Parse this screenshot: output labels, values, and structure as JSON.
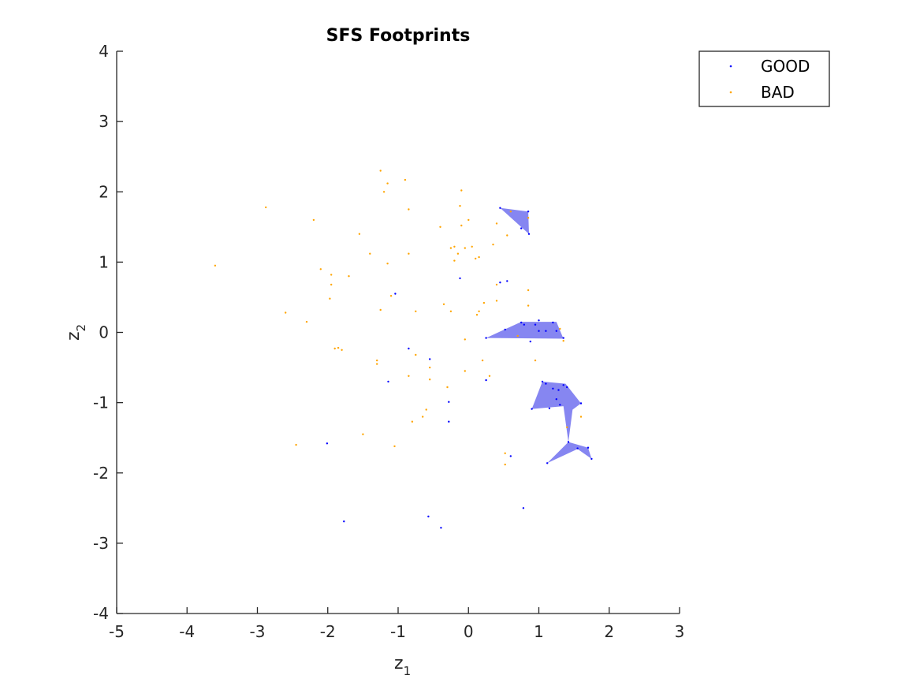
{
  "chart_data": {
    "type": "scatter",
    "title": "SFS Footprints",
    "xlabel": "z",
    "xlabel_sub": "1",
    "ylabel": "z",
    "ylabel_sub": "2",
    "xlim": [
      -5,
      3
    ],
    "ylim": [
      -4,
      4
    ],
    "xticks": [
      "-5",
      "-4",
      "-3",
      "-2",
      "-1",
      "0",
      "1",
      "2",
      "3"
    ],
    "yticks": [
      "4",
      "3",
      "2",
      "1",
      "0",
      "-1",
      "-2",
      "-3",
      "-4"
    ],
    "grid": false,
    "legend_position": "top-right",
    "colors": {
      "good": "#0000ff",
      "bad": "#ffa500",
      "footprint": "#8080f0",
      "axis": "#262626"
    },
    "series": [
      {
        "name": "GOOD",
        "values": [
          [
            0.45,
            1.77
          ],
          [
            0.55,
            0.73
          ],
          [
            0.45,
            0.71
          ],
          [
            0.85,
            1.72
          ],
          [
            0.86,
            1.4
          ],
          [
            0.75,
            1.48
          ],
          [
            0.25,
            -0.08
          ],
          [
            0.52,
            0.04
          ],
          [
            0.75,
            0.14
          ],
          [
            0.79,
            0.11
          ],
          [
            0.95,
            0.11
          ],
          [
            1.0,
            0.17
          ],
          [
            1.2,
            0.14
          ],
          [
            1.25,
            0.02
          ],
          [
            1.35,
            -0.08
          ],
          [
            1.0,
            0.02
          ],
          [
            1.1,
            0.02
          ],
          [
            0.88,
            -0.13
          ],
          [
            1.05,
            -0.7
          ],
          [
            1.1,
            -0.73
          ],
          [
            1.2,
            -0.8
          ],
          [
            1.28,
            -0.82
          ],
          [
            1.35,
            -0.75
          ],
          [
            1.4,
            -0.78
          ],
          [
            1.6,
            -1.01
          ],
          [
            1.25,
            -0.95
          ],
          [
            1.3,
            -1.03
          ],
          [
            1.15,
            -1.08
          ],
          [
            0.9,
            -1.09
          ],
          [
            1.42,
            -1.56
          ],
          [
            1.55,
            -1.65
          ],
          [
            1.7,
            -1.64
          ],
          [
            1.75,
            -1.8
          ],
          [
            1.12,
            -1.86
          ],
          [
            0.6,
            -1.76
          ],
          [
            0.78,
            -2.5
          ],
          [
            -1.04,
            0.55
          ],
          [
            -0.85,
            -0.23
          ],
          [
            -0.55,
            -0.38
          ],
          [
            -1.14,
            -0.7
          ],
          [
            -0.28,
            -0.99
          ],
          [
            -0.28,
            -1.27
          ],
          [
            0.25,
            -0.68
          ],
          [
            -0.12,
            0.77
          ],
          [
            -2.01,
            -1.58
          ],
          [
            -1.77,
            -2.69
          ],
          [
            -0.57,
            -2.62
          ],
          [
            -0.39,
            -2.78
          ]
        ]
      },
      {
        "name": "BAD",
        "values": [
          [
            -3.6,
            0.95
          ],
          [
            -2.88,
            1.78
          ],
          [
            -2.2,
            1.6
          ],
          [
            -2.3,
            0.15
          ],
          [
            -2.6,
            0.28
          ],
          [
            -2.1,
            0.9
          ],
          [
            -1.95,
            0.82
          ],
          [
            -1.95,
            0.68
          ],
          [
            -1.97,
            0.48
          ],
          [
            -1.7,
            0.8
          ],
          [
            -1.55,
            1.4
          ],
          [
            -1.4,
            1.12
          ],
          [
            -1.25,
            2.3
          ],
          [
            -1.2,
            2.0
          ],
          [
            -1.15,
            2.12
          ],
          [
            -1.15,
            0.98
          ],
          [
            -1.1,
            0.52
          ],
          [
            -1.25,
            0.32
          ],
          [
            -0.9,
            2.17
          ],
          [
            -0.85,
            1.75
          ],
          [
            -0.85,
            1.12
          ],
          [
            -0.75,
            0.3
          ],
          [
            -0.4,
            1.5
          ],
          [
            -0.35,
            0.4
          ],
          [
            -0.25,
            0.3
          ],
          [
            -0.25,
            1.2
          ],
          [
            -0.2,
            1.22
          ],
          [
            -0.2,
            1.02
          ],
          [
            -0.15,
            1.12
          ],
          [
            -0.1,
            2.02
          ],
          [
            -0.12,
            1.8
          ],
          [
            -0.1,
            1.52
          ],
          [
            -0.05,
            1.2
          ],
          [
            0.0,
            1.6
          ],
          [
            0.05,
            1.22
          ],
          [
            0.1,
            1.05
          ],
          [
            0.15,
            1.07
          ],
          [
            0.35,
            1.25
          ],
          [
            0.4,
            1.55
          ],
          [
            0.55,
            1.38
          ],
          [
            0.6,
            1.72
          ],
          [
            0.15,
            0.3
          ],
          [
            0.12,
            0.25
          ],
          [
            0.22,
            0.42
          ],
          [
            0.4,
            0.45
          ],
          [
            0.4,
            0.68
          ],
          [
            0.85,
            0.6
          ],
          [
            0.85,
            0.38
          ],
          [
            0.95,
            -0.4
          ],
          [
            -0.05,
            -0.1
          ],
          [
            -1.85,
            -0.22
          ],
          [
            -1.8,
            -0.25
          ],
          [
            -1.9,
            -0.23
          ],
          [
            -1.3,
            -0.4
          ],
          [
            -1.3,
            -0.45
          ],
          [
            -0.75,
            -0.32
          ],
          [
            -0.55,
            -0.5
          ],
          [
            -0.55,
            -0.67
          ],
          [
            -0.3,
            -0.78
          ],
          [
            -0.05,
            -0.55
          ],
          [
            0.2,
            -0.4
          ],
          [
            0.3,
            -0.62
          ],
          [
            -0.85,
            -0.62
          ],
          [
            -1.05,
            -1.62
          ],
          [
            -0.6,
            -1.1
          ],
          [
            -0.65,
            -1.2
          ],
          [
            -0.8,
            -1.27
          ],
          [
            -1.5,
            -1.45
          ],
          [
            -2.45,
            -1.6
          ],
          [
            0.52,
            -1.72
          ],
          [
            0.52,
            -1.88
          ],
          [
            1.35,
            -0.12
          ],
          [
            1.4,
            -1.35
          ],
          [
            1.6,
            -1.2
          ],
          [
            0.7,
            -0.05
          ],
          [
            0.85,
            1.63
          ],
          [
            1.3,
            0.05
          ]
        ]
      }
    ],
    "footprints": [
      [
        [
          0.45,
          1.77
        ],
        [
          0.85,
          1.72
        ],
        [
          0.86,
          1.4
        ]
      ],
      [
        [
          0.25,
          -0.08
        ],
        [
          0.75,
          0.15
        ],
        [
          1.25,
          0.15
        ],
        [
          1.35,
          -0.09
        ]
      ],
      [
        [
          1.05,
          -0.7
        ],
        [
          1.38,
          -0.73
        ],
        [
          1.6,
          -1.01
        ],
        [
          1.48,
          -1.1
        ],
        [
          1.42,
          -1.56
        ],
        [
          1.35,
          -1.05
        ],
        [
          0.9,
          -1.09
        ]
      ],
      [
        [
          1.42,
          -1.56
        ],
        [
          1.7,
          -1.64
        ],
        [
          1.75,
          -1.8
        ],
        [
          1.55,
          -1.66
        ],
        [
          1.12,
          -1.86
        ]
      ]
    ]
  }
}
